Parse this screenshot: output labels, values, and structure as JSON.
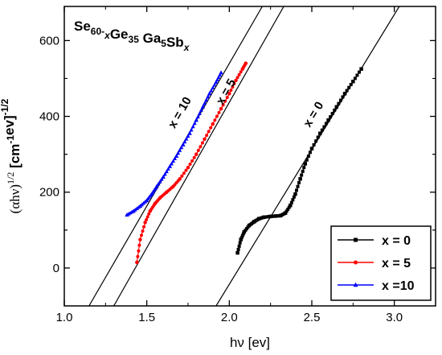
{
  "chart_data": {
    "type": "scatter",
    "title": {
      "parts": [
        {
          "text": "Se",
          "sub": false
        },
        {
          "text": "60-",
          "sub": true
        },
        {
          "text": "x",
          "sub": true,
          "italic": true
        },
        {
          "text": "Ge",
          "sub": false
        },
        {
          "text": "35",
          "sub": true
        },
        {
          "text": " Ga",
          "sub": false
        },
        {
          "text": "5",
          "sub": true
        },
        {
          "text": "Sb",
          "sub": false
        },
        {
          "text": "x",
          "sub": true,
          "italic": true
        }
      ]
    },
    "xlabel": "hν [ev]",
    "ylabel": {
      "prefix": "(αhν)",
      "prefix_sup": "1/2",
      "unit_parts": [
        {
          "text": "[cm",
          "sup": false
        },
        {
          "text": "-1",
          "sup": true
        },
        {
          "text": "ev]",
          "sup": false
        },
        {
          "text": "-1/2",
          "sup": true
        }
      ]
    },
    "xlim": [
      1.0,
      3.25
    ],
    "ylim": [
      -100,
      690
    ],
    "xticks": [
      1.0,
      1.5,
      2.0,
      2.5,
      3.0
    ],
    "xtick_labels": [
      "1.0",
      "1.5",
      "2.0",
      "2.5",
      "3.0"
    ],
    "yticks": [
      0,
      200,
      400,
      600
    ],
    "ytick_labels": [
      "0",
      "200",
      "400",
      "600"
    ],
    "grid": false,
    "legend_position": "bottom-right",
    "series": [
      {
        "name": "x = 0",
        "color": "#000000",
        "marker": "square",
        "points": [
          [
            2.05,
            40
          ],
          [
            2.07,
            75
          ],
          [
            2.09,
            95
          ],
          [
            2.12,
            112
          ],
          [
            2.15,
            122
          ],
          [
            2.18,
            130
          ],
          [
            2.21,
            134
          ],
          [
            2.25,
            136
          ],
          [
            2.28,
            137
          ],
          [
            2.31,
            138
          ],
          [
            2.34,
            145
          ],
          [
            2.37,
            165
          ],
          [
            2.4,
            195
          ],
          [
            2.43,
            235
          ],
          [
            2.46,
            275
          ],
          [
            2.5,
            315
          ],
          [
            2.55,
            355
          ],
          [
            2.6,
            390
          ],
          [
            2.65,
            425
          ],
          [
            2.7,
            460
          ],
          [
            2.75,
            492
          ],
          [
            2.8,
            525
          ]
        ],
        "fit_line": [
          [
            1.92,
            -100
          ],
          [
            3.03,
            690
          ]
        ],
        "label": "x = 0"
      },
      {
        "name": "x = 5",
        "color": "#ff0000",
        "marker": "circle",
        "points": [
          [
            1.44,
            15
          ],
          [
            1.46,
            75
          ],
          [
            1.49,
            120
          ],
          [
            1.52,
            150
          ],
          [
            1.55,
            170
          ],
          [
            1.58,
            185
          ],
          [
            1.62,
            200
          ],
          [
            1.66,
            215
          ],
          [
            1.7,
            235
          ],
          [
            1.75,
            265
          ],
          [
            1.8,
            300
          ],
          [
            1.85,
            340
          ],
          [
            1.9,
            380
          ],
          [
            1.95,
            420
          ],
          [
            2.0,
            460
          ],
          [
            2.04,
            495
          ],
          [
            2.08,
            525
          ],
          [
            2.1,
            540
          ]
        ],
        "fit_line": [
          [
            1.3,
            -100
          ],
          [
            2.33,
            690
          ]
        ],
        "label": "x = 5"
      },
      {
        "name": "x =10",
        "color": "#0000ff",
        "marker": "triangle",
        "points": [
          [
            1.38,
            140
          ],
          [
            1.42,
            150
          ],
          [
            1.46,
            163
          ],
          [
            1.5,
            178
          ],
          [
            1.53,
            195
          ],
          [
            1.56,
            215
          ],
          [
            1.6,
            240
          ],
          [
            1.64,
            268
          ],
          [
            1.68,
            295
          ],
          [
            1.72,
            325
          ],
          [
            1.76,
            355
          ],
          [
            1.8,
            390
          ],
          [
            1.84,
            425
          ],
          [
            1.88,
            460
          ],
          [
            1.92,
            490
          ],
          [
            1.95,
            515
          ]
        ],
        "fit_line": [
          [
            1.15,
            -100
          ],
          [
            2.2,
            690
          ]
        ],
        "label": "x = 10"
      }
    ]
  }
}
